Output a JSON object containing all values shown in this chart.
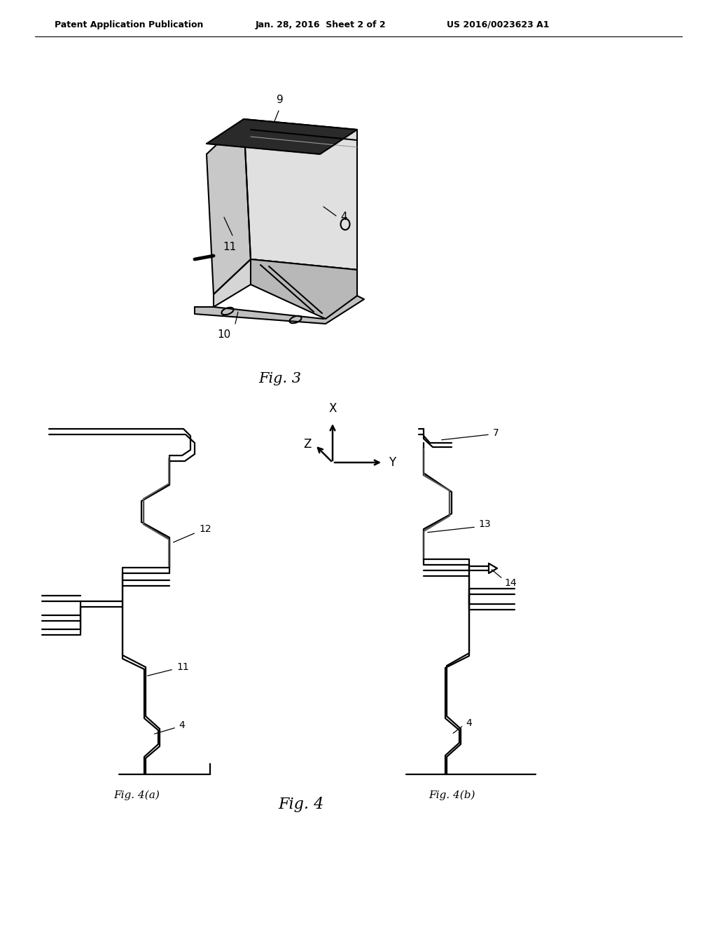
{
  "bg_color": "#ffffff",
  "header_left": "Patent Application Publication",
  "header_mid": "Jan. 28, 2016  Sheet 2 of 2",
  "header_right": "US 2016/0023623 A1",
  "fig3_caption": "Fig. 3",
  "fig4_caption": "Fig. 4",
  "fig4a_caption": "Fig. 4(a)",
  "fig4b_caption": "Fig. 4(b)",
  "lc": "#000000"
}
